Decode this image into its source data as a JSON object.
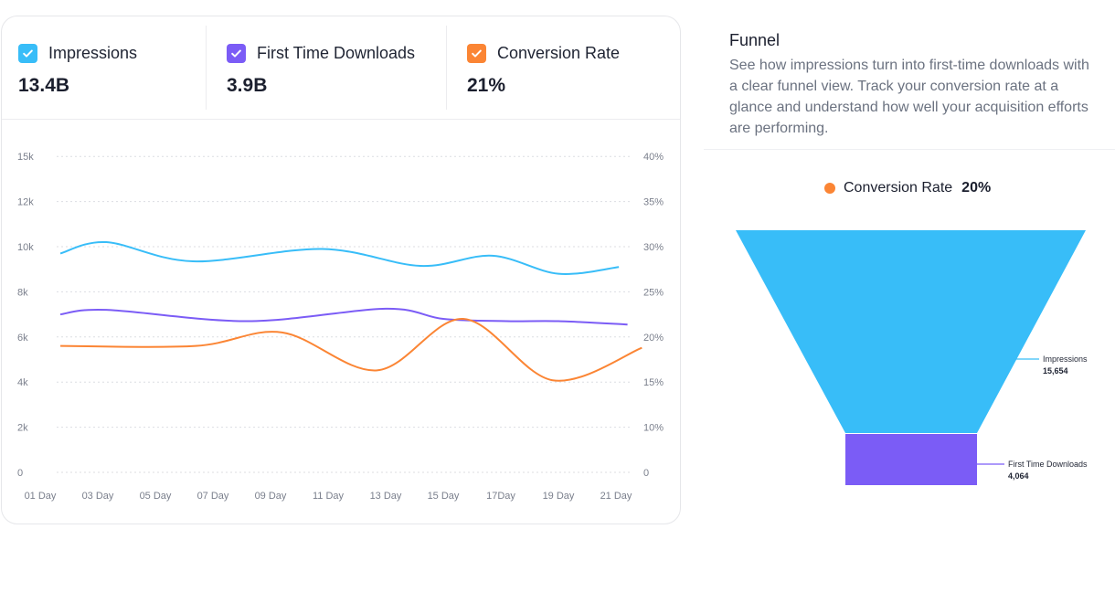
{
  "stats": [
    {
      "label": "Impressions",
      "value": "13.4B",
      "color": "#38bdf8",
      "checked": true
    },
    {
      "label": "First Time Downloads",
      "value": "3.9B",
      "color": "#7b5cf6",
      "checked": true
    },
    {
      "label": "Conversion Rate",
      "value": "21%",
      "color": "#fb8534",
      "checked": true
    }
  ],
  "chart_data": {
    "type": "line",
    "x_tick_labels": [
      "01 Day",
      "03 Day",
      "05 Day",
      "07  Day",
      "09 Day",
      "11 Day",
      "13 Day",
      "15 Day",
      "17Day",
      "19 Day",
      "21  Day"
    ],
    "x_tick_days": [
      1,
      3,
      5,
      7,
      9,
      11,
      13,
      15,
      17,
      19,
      21
    ],
    "y_left_ticks": [
      {
        "label": "0",
        "value": 0
      },
      {
        "label": "2k",
        "value": 2000
      },
      {
        "label": "4k",
        "value": 4000
      },
      {
        "label": "6k",
        "value": 6000
      },
      {
        "label": "8k",
        "value": 8000
      },
      {
        "label": "10k",
        "value": 10000
      },
      {
        "label": "12k",
        "value": 12000
      },
      {
        "label": "15k",
        "value": 15000
      }
    ],
    "y_right_ticks": [
      {
        "label": "0",
        "value": 0
      },
      {
        "label": "10%",
        "value": 10
      },
      {
        "label": "15%",
        "value": 15
      },
      {
        "label": "20%",
        "value": 20
      },
      {
        "label": "25%",
        "value": 25
      },
      {
        "label": "30%",
        "value": 30
      },
      {
        "label": "35%",
        "value": 35
      },
      {
        "label": "40%",
        "value": 40
      }
    ],
    "grid": true,
    "series": [
      {
        "name": "Impressions",
        "axis": "left",
        "color": "#38bdf8",
        "x": [
          1.7,
          3.3,
          6.3,
          10.8,
          14.2,
          16.7,
          19,
          21.1
        ],
        "y": [
          9700,
          10200,
          9350,
          9900,
          9150,
          9600,
          8800,
          9100
        ]
      },
      {
        "name": "First Time Downloads",
        "axis": "left",
        "color": "#7b5cf6",
        "x": [
          1.7,
          3.3,
          8.2,
          13,
          15,
          17.2,
          19,
          21.4
        ],
        "y": [
          7000,
          7200,
          6700,
          7250,
          6800,
          6700,
          6700,
          6550
        ]
      },
      {
        "name": "Conversion Rate",
        "axis": "right",
        "color": "#fb8534",
        "x": [
          1.7,
          6.4,
          9.4,
          12.7,
          15.7,
          18.8,
          21.9
        ],
        "y": [
          19,
          19,
          20.5,
          16.3,
          22,
          15.2,
          18.8
        ]
      }
    ]
  },
  "funnel": {
    "title": "Funnel",
    "description": "See how impressions turn into first-time downloads with a clear funnel view. Track your conversion rate at a glance and understand how well your acquisition efforts are performing.",
    "legend_label": "Conversion Rate",
    "legend_value": "20%",
    "legend_color": "#fb8534",
    "stages": [
      {
        "label": "Impressions",
        "value": "15,654",
        "color": "#38bdf8"
      },
      {
        "label": "First Time Downloads",
        "value": "4,064",
        "color": "#7b5cf6"
      }
    ]
  }
}
